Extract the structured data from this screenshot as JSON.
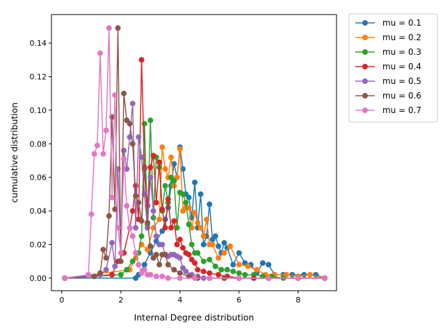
{
  "chart_data": {
    "type": "line",
    "title": "",
    "xlabel": "Internal Degree distribution",
    "ylabel": "cumulative distribution",
    "xlim": [
      -0.35,
      9.3
    ],
    "ylim": [
      -0.0075,
      0.157
    ],
    "xticks": [
      0,
      2,
      4,
      6,
      8
    ],
    "xtick_labels": [
      "0",
      "2",
      "4",
      "6",
      "8"
    ],
    "yticks": [
      0.0,
      0.02,
      0.04,
      0.06,
      0.08,
      0.1,
      0.12,
      0.14
    ],
    "ytick_labels": [
      "0.00",
      "0.02",
      "0.04",
      "0.06",
      "0.08",
      "0.10",
      "0.12",
      "0.14"
    ],
    "legend_position": "outside-top-right",
    "grid": false,
    "series": [
      {
        "name": "mu = 0.1",
        "color": "#1f77b4",
        "x": [
          0.1,
          2.5,
          2.6,
          2.8,
          3.0,
          3.2,
          3.4,
          3.5,
          3.6,
          3.7,
          3.8,
          3.9,
          4.0,
          4.1,
          4.2,
          4.3,
          4.4,
          4.5,
          4.6,
          4.7,
          4.8,
          4.9,
          5.0,
          5.1,
          5.2,
          5.3,
          5.4,
          5.5,
          5.6,
          5.8,
          6.0,
          6.2,
          6.4,
          6.6,
          6.8,
          7.0,
          7.2,
          7.5,
          7.8,
          8.2,
          8.6,
          8.9
        ],
        "y": [
          0,
          0,
          0.002,
          0.008,
          0.015,
          0.022,
          0.028,
          0.035,
          0.042,
          0.055,
          0.068,
          0.06,
          0.078,
          0.065,
          0.05,
          0.048,
          0.036,
          0.057,
          0.03,
          0.05,
          0.02,
          0.025,
          0.044,
          0.023,
          0.025,
          0.019,
          0.015,
          0.021,
          0.018,
          0.008,
          0.015,
          0.009,
          0.008,
          0.003,
          0.009,
          0.008,
          0.002,
          0.002,
          0.002,
          0.002,
          0.002,
          0
        ]
      },
      {
        "name": "mu = 0.2",
        "color": "#ff7f0e",
        "x": [
          0.1,
          2.3,
          2.5,
          2.7,
          2.9,
          3.1,
          3.3,
          3.4,
          3.5,
          3.6,
          3.7,
          3.8,
          3.9,
          4.0,
          4.1,
          4.2,
          4.3,
          4.4,
          4.5,
          4.6,
          4.7,
          4.8,
          4.9,
          5.0,
          5.1,
          5.3,
          5.5,
          5.7,
          6.0,
          6.3,
          6.6,
          6.9,
          7.2,
          7.6,
          8.0,
          8.4,
          8.9
        ],
        "y": [
          0,
          0.005,
          0.012,
          0.02,
          0.017,
          0.03,
          0.035,
          0.078,
          0.065,
          0.06,
          0.072,
          0.055,
          0.06,
          0.077,
          0.04,
          0.042,
          0.042,
          0.03,
          0.039,
          0.033,
          0.03,
          0.025,
          0.035,
          0.02,
          0.02,
          0.012,
          0.015,
          0.019,
          0.008,
          0.007,
          0.005,
          0.002,
          0.002,
          0.002,
          0.001,
          0.002,
          0
        ]
      },
      {
        "name": "mu = 0.3",
        "color": "#2ca02c",
        "x": [
          0.1,
          2.0,
          2.2,
          2.4,
          2.6,
          2.7,
          2.8,
          2.9,
          3.0,
          3.1,
          3.2,
          3.3,
          3.4,
          3.5,
          3.6,
          3.7,
          3.8,
          3.9,
          4.0,
          4.1,
          4.2,
          4.3,
          4.4,
          4.5,
          4.6,
          4.8,
          5.0,
          5.2,
          5.4,
          5.6,
          5.8,
          6.0,
          6.2,
          6.5,
          6.8,
          7.1,
          7.5,
          8.0,
          8.9
        ],
        "y": [
          0,
          0.002,
          0.005,
          0.01,
          0.015,
          0.025,
          0.092,
          0.032,
          0.094,
          0.036,
          0.072,
          0.066,
          0.04,
          0.055,
          0.045,
          0.06,
          0.058,
          0.03,
          0.051,
          0.05,
          0.045,
          0.032,
          0.02,
          0.015,
          0.015,
          0.01,
          0.011,
          0.007,
          0.005,
          0.005,
          0.004,
          0.003,
          0.002,
          0.002,
          0.001,
          0.001,
          0,
          0,
          0
        ]
      },
      {
        "name": "mu = 0.4",
        "color": "#d62728",
        "x": [
          0.1,
          1.7,
          1.9,
          2.1,
          2.3,
          2.4,
          2.5,
          2.6,
          2.7,
          2.8,
          2.9,
          3.0,
          3.1,
          3.2,
          3.3,
          3.4,
          3.5,
          3.6,
          3.7,
          3.8,
          3.9,
          4.0,
          4.1,
          4.2,
          4.3,
          4.4,
          4.5,
          4.6,
          4.8,
          5.0,
          5.3,
          5.6,
          6.0,
          6.5,
          7.0,
          8.0,
          8.9
        ],
        "y": [
          0,
          0.002,
          0.01,
          0.015,
          0.03,
          0.04,
          0.055,
          0.035,
          0.13,
          0.066,
          0.043,
          0.066,
          0.073,
          0.045,
          0.069,
          0.041,
          0.03,
          0.047,
          0.03,
          0.034,
          0.02,
          0.023,
          0.018,
          0.015,
          0.014,
          0.011,
          0.009,
          0.005,
          0.004,
          0.003,
          0.002,
          0.001,
          0,
          0,
          0,
          0,
          0
        ]
      },
      {
        "name": "mu = 0.5",
        "color": "#9467bd",
        "x": [
          0.1,
          1.3,
          1.5,
          1.7,
          1.8,
          1.9,
          2.0,
          2.1,
          2.2,
          2.3,
          2.4,
          2.5,
          2.6,
          2.7,
          2.8,
          2.9,
          3.0,
          3.1,
          3.2,
          3.3,
          3.4,
          3.5,
          3.6,
          3.7,
          3.8,
          3.9,
          4.0,
          4.1,
          4.2,
          4.4,
          4.6,
          4.8,
          5.0,
          5.5,
          6.0,
          7.0,
          8.0,
          8.9
        ],
        "y": [
          0,
          0.002,
          0.005,
          0.021,
          0.007,
          0.065,
          0.015,
          0.076,
          0.065,
          0.084,
          0.104,
          0.03,
          0.084,
          0.072,
          0.05,
          0.03,
          0.06,
          0.04,
          0.025,
          0.02,
          0.02,
          0.014,
          0.013,
          0.014,
          0.014,
          0.013,
          0.012,
          0.006,
          0.004,
          0.002,
          0.001,
          0,
          0,
          0,
          0,
          0,
          0,
          0
        ]
      },
      {
        "name": "mu = 0.6",
        "color": "#8c564b",
        "x": [
          0.1,
          1.1,
          1.3,
          1.4,
          1.5,
          1.6,
          1.7,
          1.8,
          1.9,
          2.0,
          2.1,
          2.2,
          2.3,
          2.4,
          2.5,
          2.6,
          2.7,
          2.8,
          2.9,
          3.0,
          3.1,
          3.2,
          3.3,
          3.4,
          3.5,
          3.6,
          3.8,
          4.0,
          4.3,
          4.6,
          5.0,
          5.5,
          6.0,
          7.0,
          8.0,
          8.9
        ],
        "y": [
          0,
          0.001,
          0.003,
          0.017,
          0.012,
          0.037,
          0.096,
          0.041,
          0.149,
          0.01,
          0.11,
          0.094,
          0.092,
          0.08,
          0.049,
          0.045,
          0.034,
          0.065,
          0.033,
          0.019,
          0.012,
          0.014,
          0.008,
          0.014,
          0.014,
          0.008,
          0.005,
          0.003,
          0.001,
          0,
          0,
          0,
          0,
          0,
          0,
          0
        ]
      },
      {
        "name": "mu = 0.7",
        "color": "#e377c2",
        "x": [
          0.1,
          0.9,
          1.0,
          1.1,
          1.2,
          1.3,
          1.4,
          1.5,
          1.6,
          1.7,
          1.8,
          1.9,
          2.0,
          2.1,
          2.2,
          2.3,
          2.4,
          2.5,
          2.6,
          2.7,
          2.8,
          2.9,
          3.0,
          3.2,
          3.4,
          3.6,
          4.0,
          4.5,
          5.0,
          6.0,
          7.0,
          8.0,
          8.9
        ],
        "y": [
          0,
          0.002,
          0.038,
          0.074,
          0.079,
          0.134,
          0.074,
          0.088,
          0.149,
          0.048,
          0.109,
          0.03,
          0.015,
          0.071,
          0.043,
          0.03,
          0.025,
          0.015,
          0.008,
          0.003,
          0.005,
          0.002,
          0.002,
          0.001,
          0.001,
          0,
          0,
          0,
          0,
          0,
          0,
          0,
          0
        ]
      }
    ]
  }
}
